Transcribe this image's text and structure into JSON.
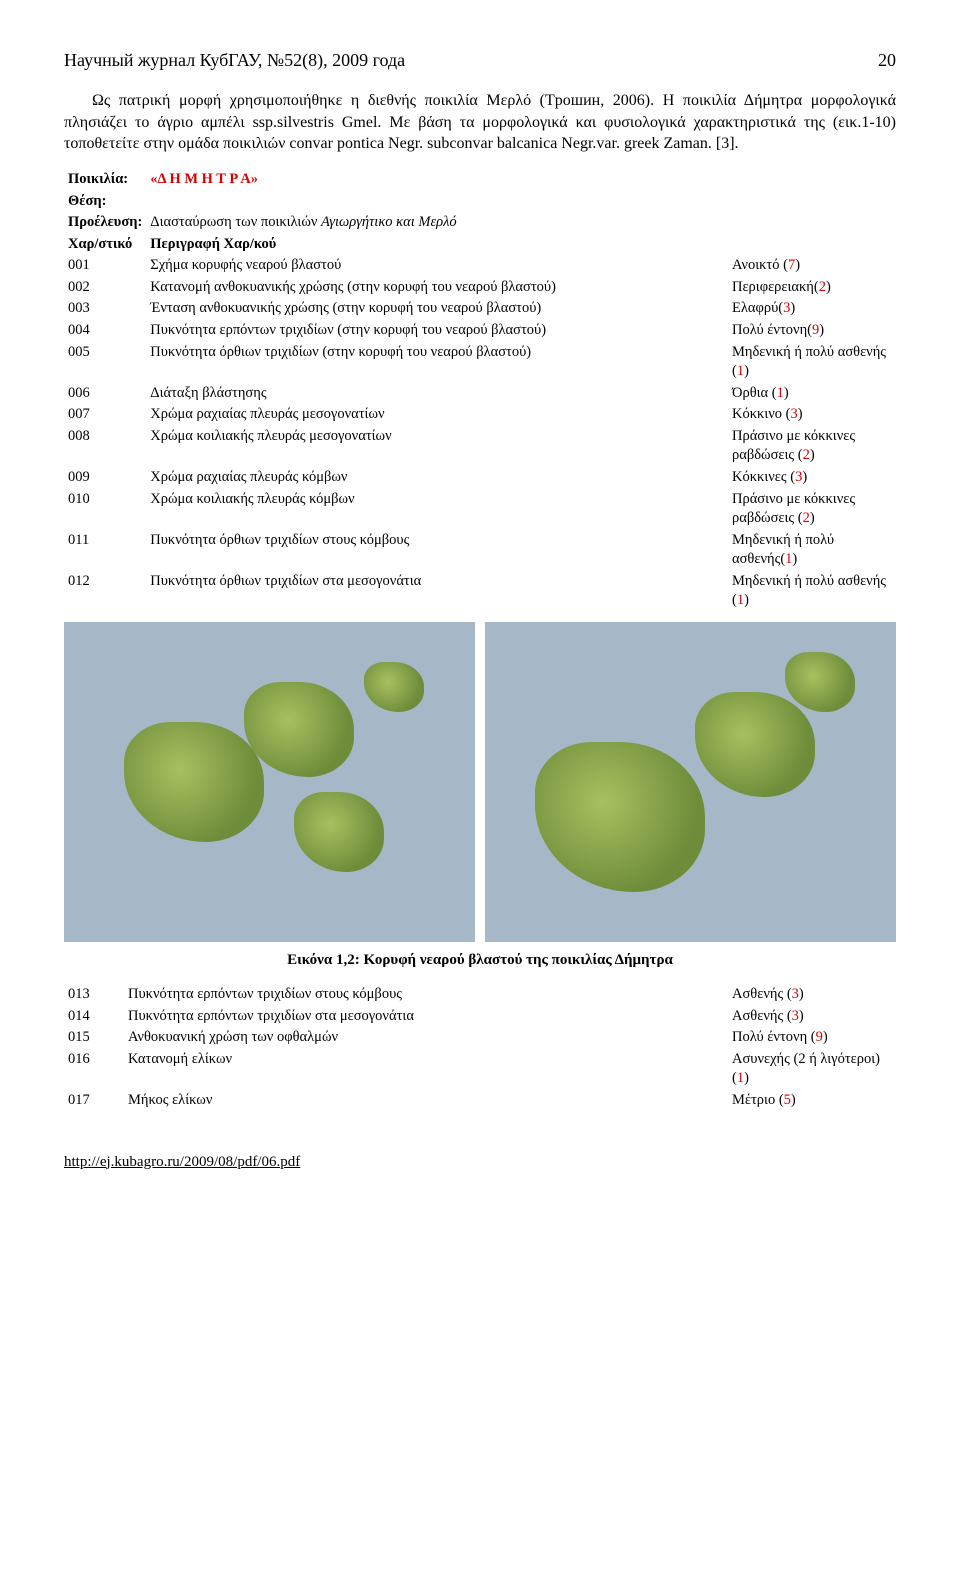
{
  "header": {
    "journal": "Научный журнал КубГАУ, №52(8), 2009 года",
    "page": "20"
  },
  "paragraph": "Ως πατρική μορφή χρησιμοποιήθηκε η διεθνής ποικιλία Μερλό (Τрошин, 2006). Η ποικιλία Δήμητρα μορφολογικά πλησιάζει το άγριο αμπέλι ssp.silvestris Gmel. Με βάση τα μορφολογικά και φυσιολογικά χαρακτηριστικά της (εικ.1-10) τοποθετείτε στην ομάδα ποικιλιών convar pontica Negr. subconvar balcanica Negr.var. greek Zaman. [3].",
  "meta": {
    "variety_label": "Ποικιλία:",
    "variety_value": "«Δ Η Μ Η Τ Ρ Α»",
    "thesis_label": "Θέση:",
    "origin_label": "Προέλευση:",
    "origin_value_prefix": "Διασταύρωση των ποικιλιών ",
    "origin_value_italic": "Αγιωργήτικο και Μερλό",
    "char_code_label": "Χαρ/στικό",
    "char_desc_label": "Περιγραφή Χαρ/κού"
  },
  "rows_top": [
    {
      "code": "001",
      "desc": "Σχήμα κορυφής νεαρού βλαστού",
      "val": "Ανοικτό (",
      "num": "7",
      "tail": ")"
    },
    {
      "code": "002",
      "desc": "Κατανομή ανθοκυανικής χρώσης (στην κορυφή του νεαρού βλαστού)",
      "val": "Περιφερειακή(",
      "num": "2",
      "tail": ")"
    },
    {
      "code": "003",
      "desc": "Ένταση ανθοκυανικής χρώσης (στην κορυφή του νεαρού βλαστού)",
      "val": "Ελαφρύ(",
      "num": "3",
      "tail": ")"
    },
    {
      "code": "004",
      "desc": "Πυκνότητα ερπόντων τριχιδίων (στην κορυφή του νεαρού βλαστού)",
      "val": "Πολύ έντονη(",
      "num": "9",
      "tail": ")"
    },
    {
      "code": "005",
      "desc": "Πυκνότητα όρθιων τριχιδίων (στην κορυφή του νεαρού βλαστού)",
      "val": "Μηδενική ή πολύ ασθενής (",
      "num": "1",
      "tail": ")"
    },
    {
      "code": "006",
      "desc": "Διάταξη βλάστησης",
      "val": "Όρθια (",
      "num": "1",
      "tail": ")"
    },
    {
      "code": "007",
      "desc": "Χρώμα ραχιαίας πλευράς μεσογονατίων",
      "val": "Κόκκινο (",
      "num": "3",
      "tail": ")"
    },
    {
      "code": "008",
      "desc": "Χρώμα κοιλιακής πλευράς μεσογονατίων",
      "val": "Πράσινο με κόκκινες ραβδώσεις (",
      "num": "2",
      "tail": ")"
    },
    {
      "code": "009",
      "desc": "Χρώμα ραχιαίας πλευράς κόμβων",
      "val": "Κόκκινες (",
      "num": "3",
      "tail": ")"
    },
    {
      "code": "010",
      "desc": "Χρώμα κοιλιακής πλευράς κόμβων",
      "val": "Πράσινο με κόκκινες ραβδώσεις (",
      "num": "2",
      "tail": ")"
    },
    {
      "code": "011",
      "desc": "Πυκνότητα όρθιων τριχιδίων στους κόμβους",
      "val": "Μηδενική ή πολύ ασθενής(",
      "num": "1",
      "tail": ")"
    },
    {
      "code": "012",
      "desc": "Πυκνότητα όρθιων τριχιδίων στα μεσογονάτια",
      "val": "Μηδενική ή πολύ ασθενής (",
      "num": "1",
      "tail": ")"
    }
  ],
  "figure_caption": "Εικόνα 1,2: Κορυφή νεαρού βλαστού της ποικιλίας Δήμητρα",
  "rows_bottom": [
    {
      "code": "013",
      "desc": "Πυκνότητα ερπόντων τριχιδίων στους κόμβους",
      "val": "Ασθενής (",
      "num": "3",
      "tail": ")"
    },
    {
      "code": "014",
      "desc": "Πυκνότητα ερπόντων τριχιδίων στα μεσογονάτια",
      "val": "Ασθενής (",
      "num": "3",
      "tail": ")"
    },
    {
      "code": "015",
      "desc": "Ανθοκυανική χρώση των οφθαλμών",
      "val": "Πολύ έντονη (",
      "num": "9",
      "tail": ")"
    },
    {
      "code": "016",
      "desc": "Κατανομή ελίκων",
      "val": "Ασυνεχής (2 ή λιγότεροι) (",
      "num": "1",
      "tail": ")"
    },
    {
      "code": "017",
      "desc": "Μήκος ελίκων",
      "val": "Μέτριο (",
      "num": "5",
      "tail": ")"
    }
  ],
  "footer_link": "http://ej.kubagro.ru/2009/08/pdf/06.pdf",
  "colors": {
    "red": "#d80000",
    "text": "#000000"
  }
}
